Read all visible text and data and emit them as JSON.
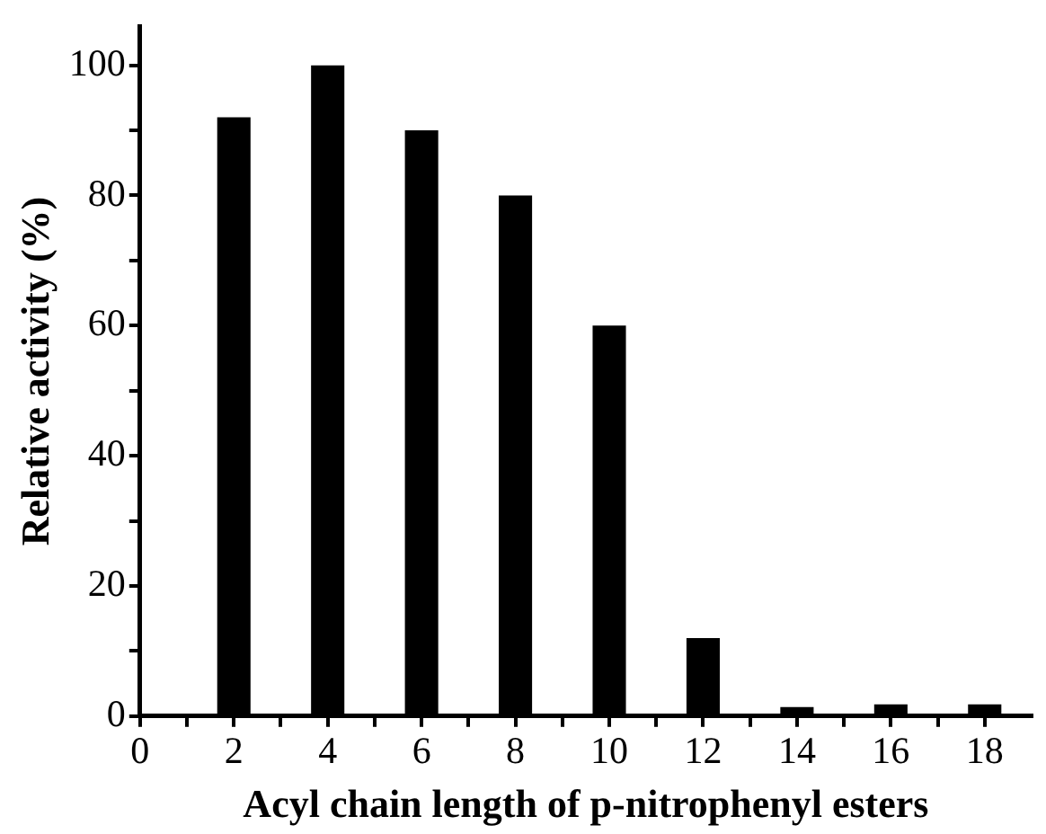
{
  "chart_data": {
    "type": "bar",
    "xlabel": "Acyl chain length of p-nitrophenyl esters",
    "ylabel": "Relative activity (%)",
    "x": [
      2,
      4,
      6,
      8,
      10,
      12,
      14,
      16,
      18
    ],
    "values": [
      92,
      100,
      90,
      80,
      60,
      12,
      1.4,
      1.8,
      1.8
    ],
    "color": "#000000",
    "xlim": [
      0,
      19
    ],
    "xticks": [
      0,
      {
        "value": 1,
        "label": null
      },
      2,
      {
        "value": 3,
        "label": null
      },
      4,
      {
        "value": 5,
        "label": null
      },
      6,
      {
        "value": 7,
        "label": null
      },
      8,
      {
        "value": 9,
        "label": null
      },
      10,
      {
        "value": 11,
        "label": null
      },
      12,
      {
        "value": 13,
        "label": null
      },
      14,
      {
        "value": 15,
        "label": null
      },
      16,
      {
        "value": 17,
        "label": null
      },
      18
    ],
    "ylim": [
      0,
      106
    ],
    "yticks": [
      0,
      {
        "value": 10,
        "label": null
      },
      20,
      {
        "value": 30,
        "label": null
      },
      40,
      {
        "value": 50,
        "label": null
      },
      60,
      {
        "value": 70,
        "label": null
      },
      80,
      {
        "value": 90,
        "label": null
      },
      100
    ],
    "grid": false,
    "legend": false
  }
}
